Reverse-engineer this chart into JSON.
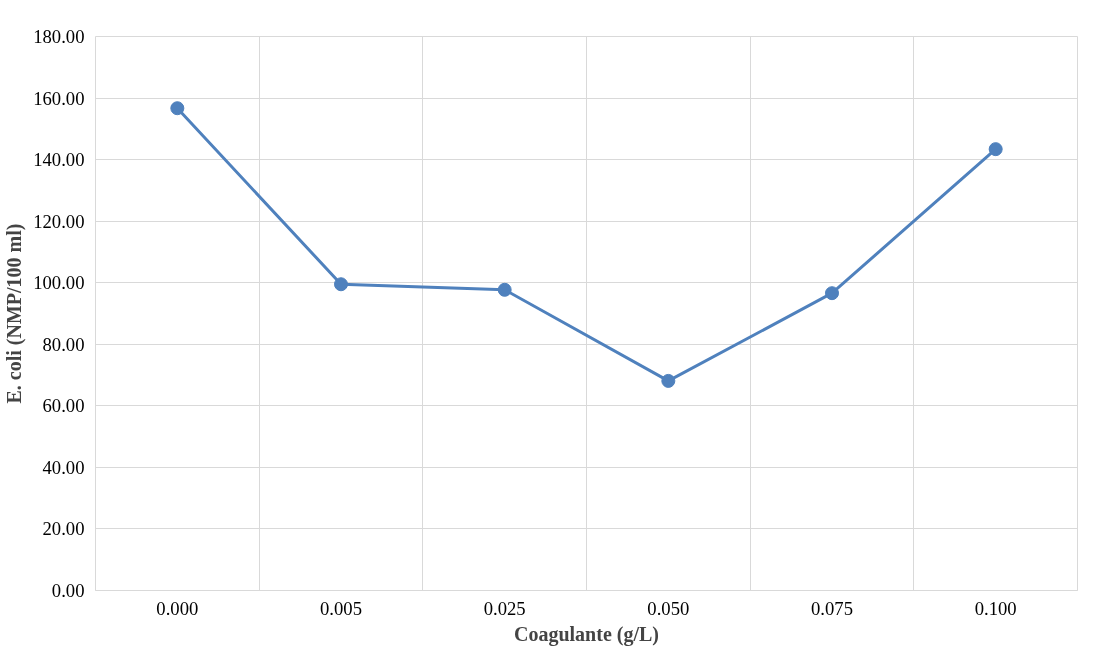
{
  "chart_data": {
    "type": "line",
    "xlabel": "Coagulante (g/L)",
    "ylabel": "E. coli (NMP/100 ml)",
    "categories": [
      "0.000",
      "0.005",
      "0.025",
      "0.050",
      "0.075",
      "0.100"
    ],
    "series": [
      {
        "color": "#4f81bd",
        "values": [
          156.7,
          99.5,
          97.7,
          68.1,
          96.6,
          143.4
        ]
      }
    ],
    "ylim": [
      0,
      180
    ],
    "yticks": [
      {
        "value": 0,
        "label": "0.00"
      },
      {
        "value": 20,
        "label": "20.00"
      },
      {
        "value": 40,
        "label": "40.00"
      },
      {
        "value": 60,
        "label": "60.00"
      },
      {
        "value": 80,
        "label": "80.00"
      },
      {
        "value": 100,
        "label": "100.00"
      },
      {
        "value": 120,
        "label": "120.00"
      },
      {
        "value": 140,
        "label": "140.00"
      },
      {
        "value": 160,
        "label": "160.00"
      },
      {
        "value": 180,
        "label": "180.00"
      }
    ],
    "grid": true,
    "marker": "circle",
    "line_style": "solid"
  }
}
